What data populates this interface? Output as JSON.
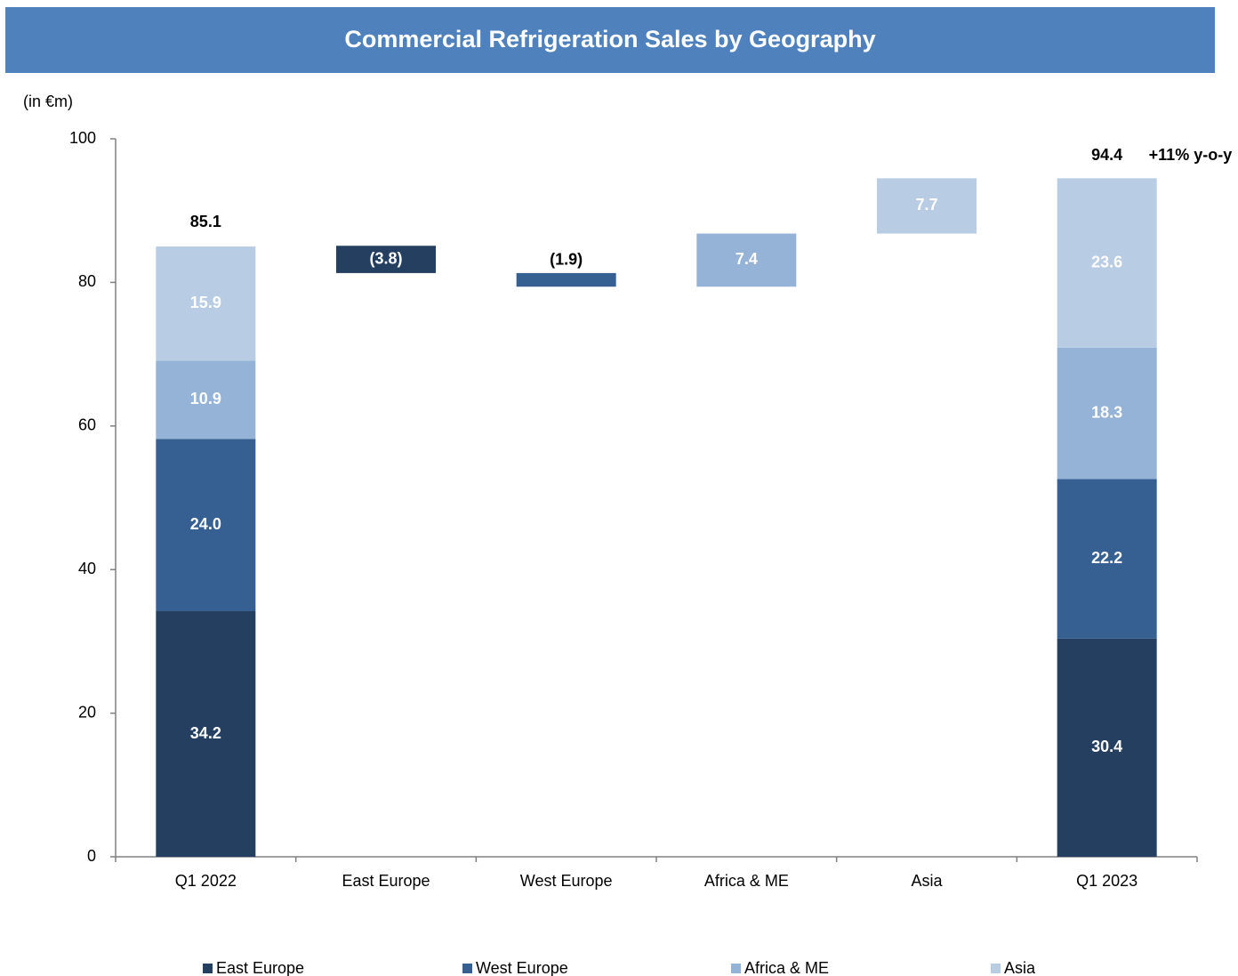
{
  "chart_data": {
    "type": "waterfall",
    "title": "Commercial Refrigeration Sales by Geography",
    "ylabel": "(in €m)",
    "categories": [
      "Q1 2022",
      "East Europe",
      "West Europe",
      "Africa & ME",
      "Asia",
      "Q1 2023"
    ],
    "series": [
      {
        "name": "East Europe",
        "color": "#243f60",
        "values": [
          34.2,
          -3.8,
          null,
          null,
          null,
          30.4
        ],
        "value_labels": [
          "34.2",
          "(3.8)",
          null,
          null,
          null,
          "30.4"
        ]
      },
      {
        "name": "West Europe",
        "color": "#366092",
        "values": [
          24.0,
          null,
          -1.9,
          null,
          null,
          22.2
        ],
        "value_labels": [
          "24.0",
          null,
          "(1.9)",
          null,
          null,
          "22.2"
        ]
      },
      {
        "name": "Africa & ME",
        "color": "#95b3d7",
        "values": [
          10.9,
          null,
          null,
          7.4,
          null,
          18.3
        ],
        "value_labels": [
          "10.9",
          null,
          null,
          "7.4",
          null,
          "18.3"
        ]
      },
      {
        "name": "Asia",
        "color": "#b8cce4",
        "values": [
          15.9,
          null,
          null,
          null,
          7.7,
          23.6
        ],
        "value_labels": [
          "15.9",
          null,
          null,
          null,
          "7.7",
          "23.6"
        ]
      }
    ],
    "totals": [
      85.1,
      null,
      null,
      null,
      null,
      94.4
    ],
    "annotation": "+11% y-o-y",
    "ylim": [
      0,
      100
    ],
    "yticks": [
      0,
      20,
      40,
      60,
      80,
      100
    ],
    "grid": false
  }
}
